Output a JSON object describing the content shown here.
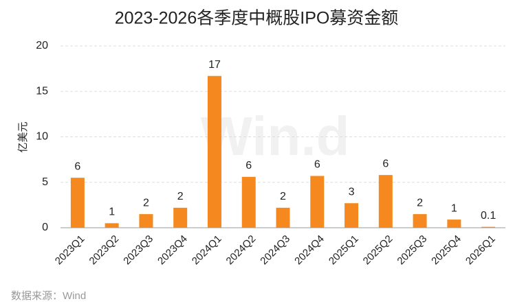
{
  "chart_data": {
    "type": "bar",
    "title": "2023-2026各季度中概股IPO募资金额",
    "y_label": "亿美元",
    "source": "数据来源：Wind",
    "watermark": "Win.d",
    "categories": [
      "2023Q1",
      "2023Q2",
      "2023Q3",
      "2023Q4",
      "2024Q1",
      "2024Q2",
      "2024Q3",
      "2024Q4",
      "2025Q1",
      "2025Q2",
      "2025Q3",
      "2025Q4",
      "2026Q1"
    ],
    "values": [
      5.5,
      0.5,
      1.5,
      2.2,
      16.7,
      5.6,
      2.2,
      5.7,
      2.7,
      5.8,
      1.5,
      0.9,
      0.1
    ],
    "value_labels": [
      "6",
      "1",
      "2",
      "2",
      "17",
      "6",
      "2",
      "6",
      "3",
      "6",
      "2",
      "1",
      "0.1"
    ],
    "color": "#f5891f",
    "ylim": [
      0,
      20
    ],
    "yticks": [
      0,
      5,
      10,
      15,
      20
    ],
    "grid": true
  }
}
